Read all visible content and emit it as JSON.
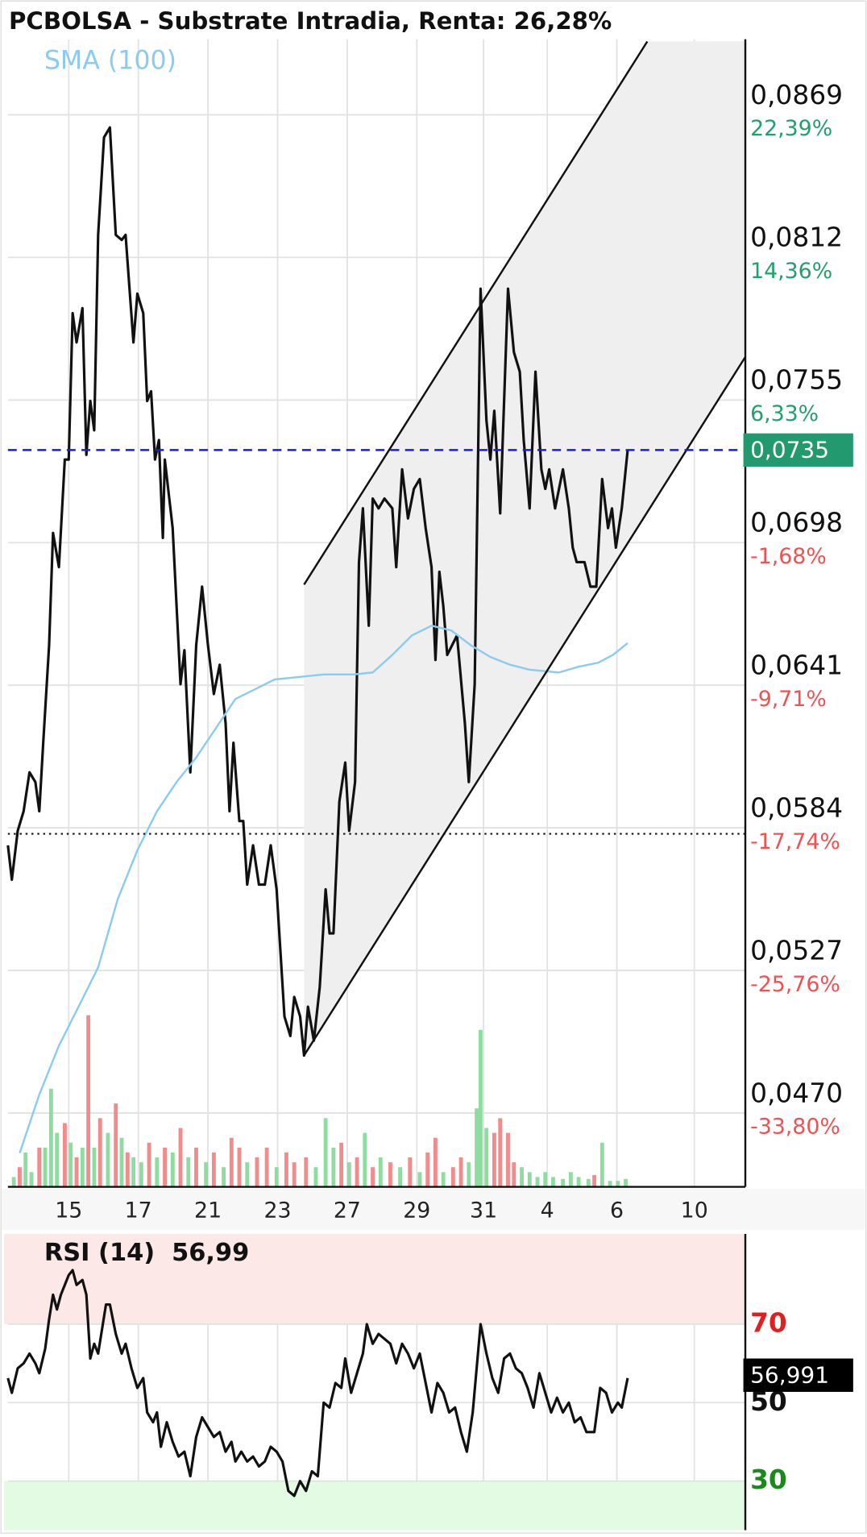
{
  "chart_data": [
    {
      "type": "line",
      "title": "PCBOLSA - Substrate Intradia, Renta: 26,28%",
      "xlim": [
        0,
        75.2
      ],
      "xticks": [
        {
          "value": 6.2,
          "label": "15"
        },
        {
          "value": 13.3,
          "label": "17"
        },
        {
          "value": 20.4,
          "label": "21"
        },
        {
          "value": 27.5,
          "label": "23"
        },
        {
          "value": 34.6,
          "label": "27"
        },
        {
          "value": 41.7,
          "label": "29"
        },
        {
          "value": 48.5,
          "label": "31"
        },
        {
          "value": 55.0,
          "label": "4"
        },
        {
          "value": 62.1,
          "label": "6"
        },
        {
          "value": 70.0,
          "label": "10"
        }
      ],
      "ylim": [
        0.04405,
        0.08992
      ],
      "yticks": [
        {
          "value": 0.0869,
          "label": "0,0869",
          "change": "22,39%"
        },
        {
          "value": 0.0812,
          "label": "0,0812",
          "change": "14,36%"
        },
        {
          "value": 0.0755,
          "label": "0,0755",
          "change": "6,33%"
        },
        {
          "value": 0.0698,
          "label": "0,0698",
          "change": "-1,68%"
        },
        {
          "value": 0.0641,
          "label": "0,0641",
          "change": "-9,71%"
        },
        {
          "value": 0.0584,
          "label": "0,0584",
          "change": "-17,74%"
        },
        {
          "value": 0.0527,
          "label": "0,0527",
          "change": "-25,76%"
        },
        {
          "value": 0.047,
          "label": "0,0470",
          "change": "-33,80%"
        }
      ],
      "change_colors": {
        "up": "#22a06b",
        "down": "#f05252"
      },
      "grid": true,
      "series": [
        {
          "color": "#111111",
          "x": [
            0.0,
            0.4,
            1.0,
            1.6,
            2.2,
            2.8,
            3.2,
            3.6,
            4.2,
            4.6,
            5.2,
            5.8,
            6.2,
            6.6,
            7.0,
            7.6,
            8.0,
            8.4,
            8.8,
            9.2,
            9.8,
            10.4,
            11.0,
            11.6,
            12.0,
            12.8,
            13.2,
            13.8,
            14.2,
            14.6,
            15.0,
            15.4,
            15.8,
            16.0,
            16.8,
            17.6,
            18.0,
            18.6,
            19.2,
            19.8,
            20.4,
            21.0,
            21.6,
            22.2,
            22.6,
            23.0,
            23.6,
            24.0,
            24.4,
            25.0,
            25.6,
            26.2,
            26.8,
            27.4,
            28.2,
            28.8,
            29.2,
            29.8,
            30.2,
            30.6,
            31.2,
            31.8,
            32.4,
            32.8,
            33.2,
            33.8,
            34.4,
            34.8,
            35.4,
            35.8,
            36.2,
            36.8,
            37.2,
            37.8,
            38.4,
            39.2,
            39.6,
            40.2,
            40.8,
            41.4,
            42.0,
            42.6,
            43.2,
            43.6,
            44.0,
            44.4,
            44.8,
            45.8,
            46.6,
            47.0,
            47.6,
            48.2,
            48.8,
            49.2,
            49.6,
            50.2,
            51.0,
            51.6,
            52.2,
            52.6,
            53.2,
            53.8,
            54.4,
            54.8,
            55.2,
            55.8,
            56.6,
            57.2,
            57.6,
            58.0,
            58.8,
            59.4,
            60.0,
            60.6,
            61.2,
            61.6,
            62.0,
            62.6,
            63.2
          ],
          "values": [
            0.0577,
            0.05633,
            0.05828,
            0.05906,
            0.06062,
            0.06023,
            0.05906,
            0.0618,
            0.0657,
            0.07019,
            0.06882,
            0.07312,
            0.07312,
            0.07897,
            0.0778,
            0.07917,
            0.07331,
            0.07546,
            0.07429,
            0.0821,
            0.086,
            0.08639,
            0.0821,
            0.0819,
            0.0821,
            0.0778,
            0.07975,
            0.07897,
            0.07546,
            0.07585,
            0.07312,
            0.0739,
            0.06999,
            0.07312,
            0.07038,
            0.06414,
            0.0655,
            0.06062,
            0.0657,
            0.06804,
            0.0657,
            0.06375,
            0.06492,
            0.06258,
            0.05906,
            0.0618,
            0.05867,
            0.05867,
            0.05613,
            0.0577,
            0.05613,
            0.05613,
            0.0577,
            0.05594,
            0.05086,
            0.05008,
            0.05164,
            0.05086,
            0.0493,
            0.05125,
            0.04989,
            0.05204,
            0.05594,
            0.05418,
            0.05418,
            0.05945,
            0.06101,
            0.05828,
            0.06023,
            0.06902,
            0.07117,
            0.06648,
            0.07156,
            0.07117,
            0.07156,
            0.07117,
            0.06882,
            0.07273,
            0.07077,
            0.07195,
            0.07234,
            0.07038,
            0.06882,
            0.06511,
            0.06863,
            0.06726,
            0.06531,
            0.06609,
            0.06258,
            0.06023,
            0.06414,
            0.07995,
            0.07468,
            0.07312,
            0.07507,
            0.07097,
            0.07995,
            0.07741,
            0.07663,
            0.0739,
            0.07117,
            0.07663,
            0.07273,
            0.07195,
            0.07273,
            0.07117,
            0.07273,
            0.07117,
            0.0696,
            0.06902,
            0.06902,
            0.06804,
            0.06804,
            0.07234,
            0.07038,
            0.07117,
            0.0696,
            0.07117,
            0.0735
          ]
        },
        {
          "name": "SMA (100)",
          "color": "#8ccbf0",
          "x": [
            1.2,
            3.2,
            5.2,
            7.2,
            9.2,
            11.2,
            13.2,
            15.2,
            17.2,
            19.2,
            21.2,
            23.2,
            25.2,
            27.2,
            29.2,
            32.2,
            35.2,
            37.2,
            39.2,
            41.2,
            43.2,
            45.2,
            47.2,
            49.2,
            51.2,
            53.2,
            56.2,
            58.2,
            60.2,
            61.7,
            63.2
          ],
          "values": [
            0.0454,
            0.04774,
            0.04969,
            0.05125,
            0.05282,
            0.05555,
            0.0575,
            0.05906,
            0.06023,
            0.06121,
            0.06238,
            0.06355,
            0.06394,
            0.06433,
            0.06441,
            0.06453,
            0.06453,
            0.06461,
            0.06531,
            0.06609,
            0.06648,
            0.06629,
            0.0657,
            0.06523,
            0.06492,
            0.06472,
            0.06461,
            0.06484,
            0.065,
            0.06531,
            0.06578
          ]
        }
      ],
      "channel": {
        "color": "#efefef",
        "upper": {
          "x": [
            30.2,
            65.2
          ],
          "values": [
            0.06812,
            0.08983
          ]
        },
        "lower": {
          "x": [
            30.2,
            75.2
          ],
          "values": [
            0.0493,
            0.07722
          ]
        }
      },
      "last_value": 0.0735,
      "last_value_label": "0,0735",
      "last_value_color": "#22996e",
      "reference_line": 0.05816,
      "volume": {
        "ylim": [
          0,
          1170
        ],
        "colors": {
          "up": "#8fdca0",
          "down": "#f28b8b"
        },
        "x": [
          0.6,
          1.2,
          1.8,
          2.4,
          3.2,
          3.8,
          4.4,
          5.0,
          5.8,
          6.4,
          7.0,
          7.6,
          8.2,
          8.8,
          9.4,
          10.2,
          11.0,
          11.6,
          12.2,
          12.8,
          13.6,
          14.4,
          15.2,
          16.0,
          16.8,
          17.6,
          18.4,
          19.2,
          20.2,
          21.0,
          22.0,
          22.8,
          23.6,
          24.4,
          25.4,
          26.4,
          27.4,
          28.4,
          29.2,
          30.4,
          31.4,
          32.4,
          33.2,
          34.0,
          34.8,
          35.6,
          36.4,
          37.2,
          38.0,
          39.0,
          40.0,
          41.0,
          42.0,
          42.8,
          43.6,
          44.4,
          45.4,
          46.2,
          47.0,
          47.8,
          48.2,
          48.8,
          49.6,
          50.2,
          51.0,
          51.6,
          52.4,
          53.2,
          54.0,
          54.8,
          55.6,
          56.6,
          57.4,
          58.2,
          59.2,
          59.8,
          60.6,
          61.4,
          62.2,
          63.0
        ],
        "values": [
          10,
          20,
          35,
          15,
          40,
          40,
          100,
          55,
          65,
          45,
          30,
          40,
          175,
          40,
          70,
          55,
          85,
          50,
          35,
          30,
          25,
          45,
          30,
          40,
          35,
          60,
          30,
          40,
          25,
          35,
          20,
          50,
          40,
          25,
          30,
          40,
          20,
          35,
          25,
          30,
          20,
          70,
          40,
          45,
          25,
          30,
          55,
          20,
          30,
          25,
          20,
          30,
          15,
          35,
          50,
          15,
          20,
          30,
          25,
          80,
          160,
          60,
          55,
          70,
          55,
          25,
          20,
          15,
          10,
          15,
          10,
          8,
          15,
          10,
          8,
          12,
          45,
          6,
          6,
          8
        ],
        "up": [
          true,
          false,
          true,
          true,
          false,
          true,
          true,
          true,
          false,
          true,
          false,
          true,
          false,
          true,
          false,
          true,
          false,
          true,
          false,
          true,
          true,
          false,
          true,
          false,
          true,
          false,
          true,
          false,
          true,
          false,
          true,
          false,
          false,
          true,
          false,
          false,
          true,
          false,
          false,
          false,
          true,
          true,
          true,
          false,
          true,
          false,
          true,
          false,
          true,
          false,
          true,
          false,
          true,
          false,
          false,
          true,
          false,
          false,
          true,
          true,
          true,
          true,
          false,
          false,
          false,
          false,
          true,
          true,
          true,
          true,
          true,
          true,
          true,
          true,
          true,
          false,
          true,
          true,
          true,
          true
        ]
      }
    },
    {
      "type": "line",
      "title": "RSI (14)",
      "value_label": "56,99",
      "xlim": [
        0,
        75.2
      ],
      "ylim": [
        17.5,
        93
      ],
      "yticks": [
        70,
        50,
        30
      ],
      "ytick_colors": [
        "#e02020",
        "#111111",
        "#1a8a1a"
      ],
      "zones": [
        {
          "from": 70,
          "to": 93,
          "color": "#fde8e8"
        },
        {
          "from": 17.5,
          "to": 30,
          "color": "#e3fae3"
        }
      ],
      "series": [
        {
          "color": "#111111",
          "x": [
            0,
            0.4,
            1.0,
            1.6,
            2.2,
            2.8,
            3.2,
            3.8,
            4.2,
            4.6,
            5.0,
            5.4,
            5.8,
            6.2,
            6.6,
            7.0,
            7.6,
            8.0,
            8.4,
            8.8,
            9.2,
            9.6,
            10.0,
            10.4,
            11.0,
            11.6,
            12.0,
            12.6,
            13.2,
            13.8,
            14.2,
            14.8,
            15.2,
            15.6,
            16.2,
            16.8,
            17.4,
            18.0,
            18.6,
            19.2,
            19.8,
            20.4,
            21.0,
            21.6,
            22.2,
            22.8,
            23.2,
            23.8,
            24.4,
            25.0,
            25.6,
            26.2,
            26.8,
            27.4,
            28.0,
            28.6,
            29.2,
            29.8,
            30.4,
            31.0,
            31.6,
            32.2,
            32.8,
            33.4,
            34.0,
            34.4,
            35.0,
            35.6,
            36.2,
            36.6,
            37.2,
            37.8,
            38.4,
            39.0,
            39.6,
            40.2,
            40.8,
            41.4,
            42.0,
            42.6,
            43.2,
            43.8,
            44.4,
            45.0,
            45.6,
            46.2,
            46.8,
            47.4,
            48.2,
            48.8,
            49.4,
            50.0,
            50.6,
            51.2,
            51.8,
            52.4,
            53.0,
            53.6,
            54.2,
            54.8,
            55.4,
            56.0,
            56.6,
            57.2,
            57.8,
            58.4,
            59.0,
            59.8,
            60.4,
            61.0,
            61.6,
            62.2,
            62.6,
            63.2
          ],
          "values": [
            56.25,
            52.5,
            58.75,
            60,
            62.5,
            60,
            57.5,
            63.75,
            71.25,
            77.5,
            73.75,
            77.5,
            80,
            82.5,
            83.75,
            80,
            81.25,
            77.5,
            61.25,
            65,
            62.5,
            68.75,
            75,
            75,
            67.5,
            62.5,
            65,
            58.75,
            53.75,
            56.25,
            47.5,
            45,
            47.5,
            38.75,
            45,
            40,
            36.25,
            37.5,
            31.25,
            41.25,
            46.25,
            43.75,
            41.25,
            42.5,
            37.5,
            40,
            35,
            37.5,
            35,
            36.25,
            33.75,
            35,
            38.75,
            37.5,
            35,
            27.5,
            26.25,
            30,
            27.5,
            32.5,
            31.25,
            50,
            48.75,
            55,
            53.75,
            61.25,
            52.5,
            57.5,
            62.5,
            70,
            65,
            67.5,
            66.25,
            65,
            60,
            65,
            62.5,
            58.75,
            62.5,
            55,
            47.5,
            55,
            52.5,
            47.5,
            48.75,
            42.5,
            37.5,
            47.5,
            70,
            62.5,
            56.25,
            52.5,
            61.25,
            62.5,
            58.75,
            57.5,
            53.75,
            48.75,
            57.5,
            52.5,
            47.5,
            51.25,
            47.5,
            50,
            45,
            46.25,
            42.5,
            42.5,
            53.75,
            52.5,
            47.5,
            50,
            48.75,
            56.25
          ]
        }
      ],
      "last_value": 56.991,
      "last_value_label": "56,991",
      "last_value_color": "#000000"
    }
  ]
}
